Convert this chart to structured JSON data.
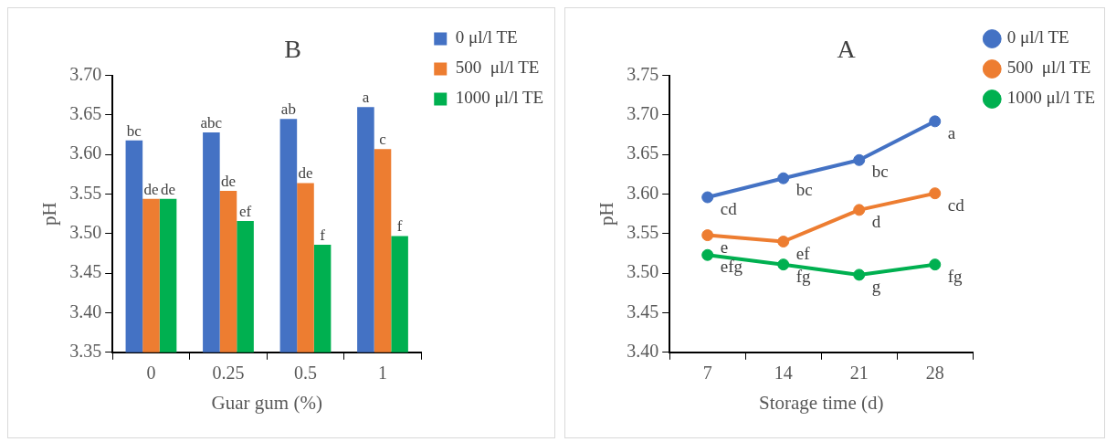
{
  "chart_data": [
    {
      "type": "bar",
      "title": "B",
      "xlabel": "Guar gum (%)",
      "ylabel": "pH",
      "categories": [
        "0",
        "0.25",
        "0.5",
        "1"
      ],
      "series": [
        {
          "name": "0 μl/l TE",
          "color": "#4472c4",
          "values": [
            3.618,
            3.628,
            3.645,
            3.66
          ],
          "value_labels": [
            "bc",
            "abc",
            "ab",
            "a"
          ]
        },
        {
          "name": "500  μl/l TE",
          "color": "#ed7d31",
          "values": [
            3.544,
            3.554,
            3.564,
            3.607
          ],
          "value_labels": [
            "de",
            "de",
            "de",
            "c"
          ]
        },
        {
          "name": "1000 μl/l TE",
          "color": "#00b050",
          "values": [
            3.544,
            3.516,
            3.486,
            3.497
          ],
          "value_labels": [
            "de",
            "ef",
            "f",
            "f"
          ]
        }
      ],
      "ylim": [
        3.35,
        3.7
      ],
      "yticks": [
        {
          "value": 3.35,
          "label": "3.35"
        },
        {
          "value": 3.4,
          "label": "3.40"
        },
        {
          "value": 3.45,
          "label": "3.45"
        },
        {
          "value": 3.5,
          "label": "3.50"
        },
        {
          "value": 3.55,
          "label": "3.55"
        },
        {
          "value": 3.6,
          "label": "3.60"
        },
        {
          "value": 3.65,
          "label": "3.65"
        },
        {
          "value": 3.7,
          "label": "3.70"
        }
      ],
      "grid": false,
      "legend": "top right"
    },
    {
      "type": "line",
      "title": "A",
      "xlabel": "Storage time (d)",
      "ylabel": "pH",
      "categories": [
        "7",
        "14",
        "21",
        "28"
      ],
      "series": [
        {
          "name": "0 μl/l TE",
          "color": "#4472c4",
          "values": [
            3.596,
            3.62,
            3.643,
            3.692
          ],
          "value_labels": [
            "cd",
            "bc",
            "bc",
            "a"
          ]
        },
        {
          "name": "500  μl/l TE",
          "color": "#ed7d31",
          "values": [
            3.548,
            3.54,
            3.58,
            3.601
          ],
          "value_labels": [
            "e",
            "ef",
            "d",
            "cd"
          ]
        },
        {
          "name": "1000 μl/l TE",
          "color": "#00b050",
          "values": [
            3.523,
            3.511,
            3.498,
            3.511
          ],
          "value_labels": [
            "efg",
            "fg",
            "g",
            "fg"
          ]
        }
      ],
      "ylim": [
        3.4,
        3.75
      ],
      "yticks": [
        {
          "value": 3.4,
          "label": "3.40"
        },
        {
          "value": 3.45,
          "label": "3.45"
        },
        {
          "value": 3.5,
          "label": "3.50"
        },
        {
          "value": 3.55,
          "label": "3.55"
        },
        {
          "value": 3.6,
          "label": "3.60"
        },
        {
          "value": 3.65,
          "label": "3.65"
        },
        {
          "value": 3.7,
          "label": "3.70"
        },
        {
          "value": 3.75,
          "label": "3.75"
        }
      ],
      "grid": false,
      "legend": "top right",
      "marker": "circle",
      "line_style": "solid"
    }
  ]
}
